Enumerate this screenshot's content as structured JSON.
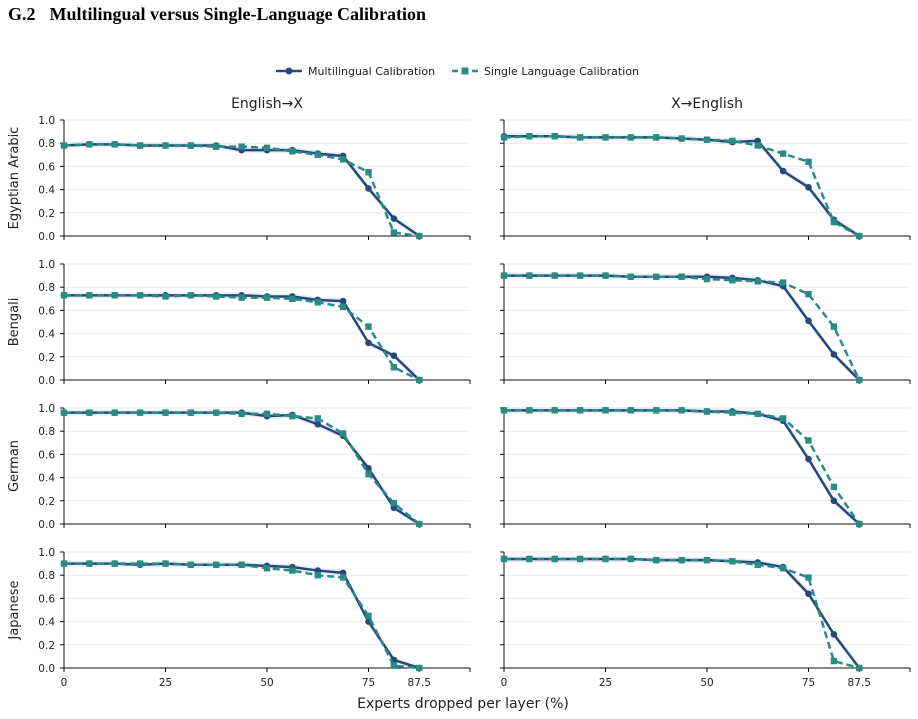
{
  "section": {
    "number": "G.2",
    "title": "Multilingual versus Single-Language Calibration"
  },
  "legend": {
    "position": "top-center",
    "entries": [
      "Multilingual Calibration",
      "Single Language Calibration"
    ]
  },
  "colors": {
    "multilingual": "#24497a",
    "single": "#2a8b84",
    "grid": "#ececec",
    "band": "#c7c9e6"
  },
  "chart_data": {
    "type": "line",
    "layout": "grid 4 rows x 2 columns (shared axes)",
    "column_titles": [
      "English→X",
      "X→English"
    ],
    "row_labels": [
      "Egyptian Arabic",
      "Bengali",
      "German",
      "Japanese"
    ],
    "xlabel": "Experts dropped per layer (%)",
    "xticks": [
      0,
      25,
      50,
      75,
      87.5
    ],
    "xtick_labels": [
      "0",
      "25",
      "50",
      "75",
      "87.5"
    ],
    "xlim": [
      0,
      87.5
    ],
    "yticks": [
      0.0,
      0.2,
      0.4,
      0.6,
      0.8,
      1.0
    ],
    "ytick_labels": [
      "0.0",
      "0.2",
      "0.4",
      "0.6",
      "0.8",
      "1.0"
    ],
    "ylim": [
      0,
      1.0
    ],
    "grid": "horizontal",
    "x": [
      0,
      6.25,
      12.5,
      18.75,
      25,
      31.25,
      37.5,
      43.75,
      50,
      56.25,
      62.5,
      68.75,
      75,
      81.25,
      87.5
    ],
    "series_names": [
      "Multilingual Calibration",
      "Single Language Calibration"
    ],
    "panels": [
      {
        "row": "Egyptian Arabic",
        "column": "English→X",
        "series": [
          {
            "name": "Multilingual Calibration",
            "style": "solid-circle",
            "values": [
              0.78,
              0.79,
              0.79,
              0.78,
              0.78,
              0.78,
              0.78,
              0.74,
              0.74,
              0.74,
              0.71,
              0.69,
              0.41,
              0.15,
              0.0
            ]
          },
          {
            "name": "Single Language Calibration",
            "style": "dashed-square",
            "values": [
              0.78,
              0.79,
              0.79,
              0.78,
              0.78,
              0.78,
              0.77,
              0.77,
              0.76,
              0.73,
              0.7,
              0.66,
              0.55,
              0.03,
              0.0
            ]
          }
        ]
      },
      {
        "row": "Egyptian Arabic",
        "column": "X→English",
        "series": [
          {
            "name": "Multilingual Calibration",
            "style": "solid-circle",
            "values": [
              0.86,
              0.86,
              0.86,
              0.85,
              0.85,
              0.85,
              0.85,
              0.84,
              0.83,
              0.81,
              0.82,
              0.56,
              0.42,
              0.14,
              0.0
            ]
          },
          {
            "name": "Single Language Calibration",
            "style": "dashed-square",
            "values": [
              0.85,
              0.86,
              0.86,
              0.85,
              0.85,
              0.85,
              0.85,
              0.84,
              0.83,
              0.82,
              0.78,
              0.71,
              0.64,
              0.12,
              0.0
            ]
          }
        ]
      },
      {
        "row": "Bengali",
        "column": "English→X",
        "series": [
          {
            "name": "Multilingual Calibration",
            "style": "solid-circle",
            "values": [
              0.73,
              0.73,
              0.73,
              0.73,
              0.73,
              0.73,
              0.73,
              0.73,
              0.72,
              0.72,
              0.69,
              0.68,
              0.32,
              0.21,
              0.0
            ]
          },
          {
            "name": "Single Language Calibration",
            "style": "dashed-square",
            "values": [
              0.73,
              0.73,
              0.73,
              0.73,
              0.72,
              0.73,
              0.72,
              0.71,
              0.71,
              0.7,
              0.67,
              0.63,
              0.46,
              0.11,
              0.0
            ]
          }
        ]
      },
      {
        "row": "Bengali",
        "column": "X→English",
        "series": [
          {
            "name": "Multilingual Calibration",
            "style": "solid-circle",
            "values": [
              0.9,
              0.9,
              0.9,
              0.9,
              0.9,
              0.89,
              0.89,
              0.89,
              0.89,
              0.88,
              0.86,
              0.81,
              0.51,
              0.22,
              0.0
            ]
          },
          {
            "name": "Single Language Calibration",
            "style": "dashed-square",
            "values": [
              0.9,
              0.9,
              0.9,
              0.9,
              0.9,
              0.89,
              0.89,
              0.89,
              0.87,
              0.86,
              0.85,
              0.84,
              0.74,
              0.46,
              0.0
            ]
          }
        ]
      },
      {
        "row": "German",
        "column": "English→X",
        "series": [
          {
            "name": "Multilingual Calibration",
            "style": "solid-circle",
            "values": [
              0.96,
              0.96,
              0.96,
              0.96,
              0.96,
              0.96,
              0.96,
              0.96,
              0.93,
              0.94,
              0.86,
              0.76,
              0.48,
              0.14,
              0.0
            ]
          },
          {
            "name": "Single Language Calibration",
            "style": "dashed-square",
            "values": [
              0.96,
              0.96,
              0.96,
              0.96,
              0.96,
              0.96,
              0.96,
              0.95,
              0.95,
              0.93,
              0.91,
              0.78,
              0.43,
              0.18,
              0.0
            ]
          }
        ]
      },
      {
        "row": "German",
        "column": "X→English",
        "series": [
          {
            "name": "Multilingual Calibration",
            "style": "solid-circle",
            "values": [
              0.98,
              0.98,
              0.98,
              0.98,
              0.98,
              0.98,
              0.98,
              0.98,
              0.97,
              0.97,
              0.95,
              0.89,
              0.56,
              0.2,
              0.0
            ]
          },
          {
            "name": "Single Language Calibration",
            "style": "dashed-square",
            "values": [
              0.98,
              0.98,
              0.98,
              0.98,
              0.98,
              0.98,
              0.98,
              0.98,
              0.97,
              0.96,
              0.95,
              0.91,
              0.72,
              0.32,
              0.0
            ]
          }
        ]
      },
      {
        "row": "Japanese",
        "column": "English→X",
        "series": [
          {
            "name": "Multilingual Calibration",
            "style": "solid-circle",
            "values": [
              0.9,
              0.9,
              0.9,
              0.89,
              0.9,
              0.89,
              0.89,
              0.89,
              0.88,
              0.87,
              0.84,
              0.82,
              0.4,
              0.07,
              0.0
            ]
          },
          {
            "name": "Single Language Calibration",
            "style": "dashed-square",
            "values": [
              0.9,
              0.9,
              0.9,
              0.9,
              0.9,
              0.89,
              0.89,
              0.89,
              0.86,
              0.84,
              0.8,
              0.78,
              0.45,
              0.02,
              0.0
            ]
          }
        ]
      },
      {
        "row": "Japanese",
        "column": "X→English",
        "series": [
          {
            "name": "Multilingual Calibration",
            "style": "solid-circle",
            "values": [
              0.94,
              0.94,
              0.94,
              0.94,
              0.94,
              0.94,
              0.93,
              0.93,
              0.93,
              0.92,
              0.91,
              0.87,
              0.64,
              0.29,
              0.0
            ]
          },
          {
            "name": "Single Language Calibration",
            "style": "dashed-square",
            "values": [
              0.94,
              0.94,
              0.94,
              0.94,
              0.94,
              0.94,
              0.93,
              0.93,
              0.93,
              0.92,
              0.89,
              0.86,
              0.78,
              0.06,
              0.0
            ]
          }
        ]
      }
    ]
  }
}
